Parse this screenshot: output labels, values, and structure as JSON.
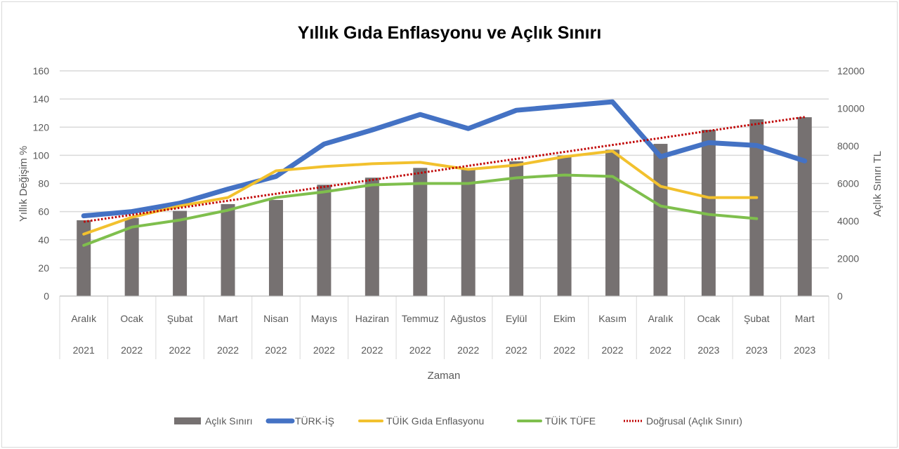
{
  "chart_data": {
    "type": "bar+line",
    "title": "Yıllık Gıda Enflasyonu ve Açlık Sınırı",
    "xlabel": "Zaman",
    "ylabel": "Yıllık Değişim %",
    "y2label": "Açlık Sınırı TL",
    "ylim": [
      0,
      160
    ],
    "y2lim": [
      0,
      12000
    ],
    "yticks": [
      "0",
      "20",
      "40",
      "60",
      "80",
      "100",
      "120",
      "140",
      "160"
    ],
    "y2ticks": [
      "0",
      "2000",
      "4000",
      "6000",
      "8000",
      "10000",
      "12000"
    ],
    "grid": true,
    "legend_position": "bottom",
    "categories": [
      [
        "Aralık",
        "2021"
      ],
      [
        "Ocak",
        "2022"
      ],
      [
        "Şubat",
        "2022"
      ],
      [
        "Mart",
        "2022"
      ],
      [
        "Nisan",
        "2022"
      ],
      [
        "Mayıs",
        "2022"
      ],
      [
        "Haziran",
        "2022"
      ],
      [
        "Temmuz",
        "2022"
      ],
      [
        "Ağustos",
        "2022"
      ],
      [
        "Eylül",
        "2022"
      ],
      [
        "Ekim",
        "2022"
      ],
      [
        "Kasım",
        "2022"
      ],
      [
        "Aralık",
        "2022"
      ],
      [
        "Ocak",
        "2023"
      ],
      [
        "Şubat",
        "2023"
      ],
      [
        "Mart",
        "2023"
      ]
    ],
    "series": [
      {
        "name": "Açlık Sınırı",
        "type": "bar",
        "axis": "right",
        "color": "#767171",
        "values": [
          4040,
          4160,
          4540,
          4900,
          5120,
          5930,
          6310,
          6830,
          6740,
          7180,
          7490,
          7800,
          8110,
          8860,
          9420,
          9530
        ]
      },
      {
        "name": "TÜRK-İŞ",
        "type": "line",
        "axis": "left",
        "color": "#4472c4",
        "values": [
          57,
          60,
          66,
          76,
          85,
          108,
          118,
          129,
          119,
          132,
          135,
          138,
          99,
          109,
          107,
          96
        ]
      },
      {
        "name": "TÜİK Gıda Enflasyonu",
        "type": "line",
        "axis": "left",
        "color": "#f2c12e",
        "values": [
          44,
          56,
          64,
          70,
          89,
          92,
          94,
          95,
          90,
          93,
          99,
          103,
          78,
          70,
          70,
          null
        ]
      },
      {
        "name": "TÜİK TÜFE",
        "type": "line",
        "axis": "left",
        "color": "#7fbf4d",
        "values": [
          36,
          49,
          54,
          61,
          70,
          74,
          79,
          80,
          80,
          84,
          86,
          85,
          64,
          58,
          55,
          null
        ]
      },
      {
        "name": "Doğrusal (Açlık Sınırı)",
        "type": "trendline",
        "axis": "right",
        "color": "#c00000",
        "values": [
          3960,
          4330,
          4700,
          5080,
          5450,
          5820,
          6190,
          6560,
          6940,
          7310,
          7680,
          8050,
          8420,
          8800,
          9170,
          9540
        ]
      }
    ]
  }
}
